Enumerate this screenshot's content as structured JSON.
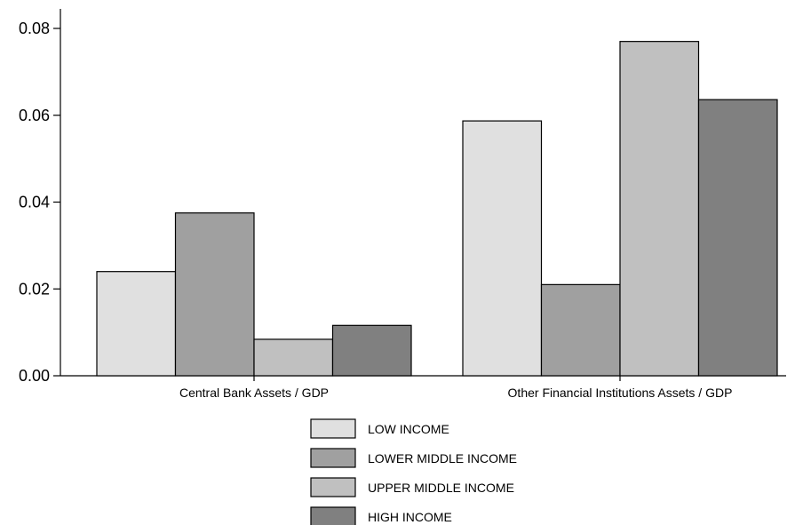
{
  "chart_data": {
    "type": "bar",
    "title": "",
    "xlabel": "",
    "ylabel": "",
    "categories": [
      "Central Bank Assets / GDP",
      "Other Financial Institutions Assets / GDP"
    ],
    "series": [
      {
        "name": "LOW INCOME",
        "color": "#e0e0e0",
        "values": [
          0.024,
          0.0587
        ]
      },
      {
        "name": "LOWER MIDDLE INCOME",
        "color": "#a0a0a0",
        "values": [
          0.0375,
          0.021
        ]
      },
      {
        "name": "UPPER MIDDLE INCOME",
        "color": "#c0c0c0",
        "values": [
          0.0084,
          0.077
        ]
      },
      {
        "name": "HIGH INCOME",
        "color": "#808080",
        "values": [
          0.0116,
          0.0636
        ]
      }
    ],
    "ylim": [
      0,
      0.08
    ],
    "yticks": [
      "0.00",
      "0.02",
      "0.04",
      "0.06",
      "0.08"
    ],
    "grid": false,
    "legend_position": "bottom-center"
  }
}
